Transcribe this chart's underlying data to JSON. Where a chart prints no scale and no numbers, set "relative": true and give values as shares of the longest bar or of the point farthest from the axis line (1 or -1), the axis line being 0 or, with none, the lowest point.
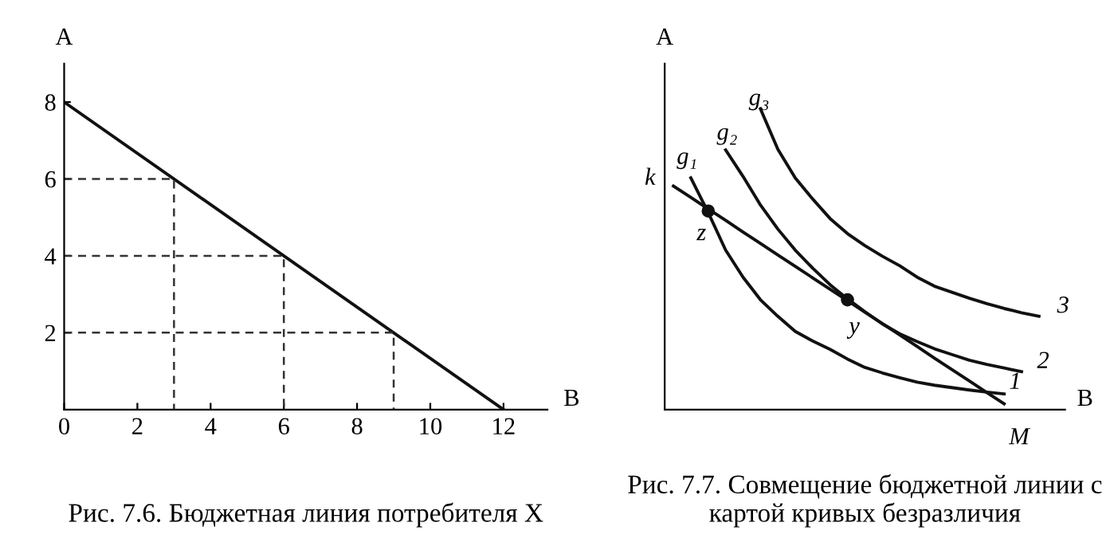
{
  "chart_data": [
    {
      "type": "line",
      "title": "Рис. 7.6. Бюджетная линия потребителя X",
      "xlabel": "В",
      "ylabel": "А",
      "xlim": [
        0,
        13.2
      ],
      "ylim": [
        0,
        9
      ],
      "xticks": [
        0,
        2,
        4,
        6,
        8,
        10,
        12
      ],
      "yticks": [
        2,
        4,
        6,
        8
      ],
      "series": [
        {
          "color": "#111111",
          "x": [
            0,
            12
          ],
          "values": [
            8,
            0
          ],
          "line_style": "solid"
        },
        {
          "color": "#333333",
          "x": [
            0,
            3,
            3
          ],
          "values": [
            6,
            6,
            0
          ],
          "line_style": "dashed"
        },
        {
          "color": "#333333",
          "x": [
            0,
            6,
            6
          ],
          "values": [
            4,
            4,
            0
          ],
          "line_style": "dashed"
        },
        {
          "color": "#333333",
          "x": [
            0,
            9,
            9
          ],
          "values": [
            2,
            2,
            0
          ],
          "line_style": "dashed"
        }
      ]
    },
    {
      "type": "line",
      "relative": true,
      "title": "Рис. 7.7. Совмещение бюджетной линии с картой кривых безразличия",
      "xlabel": "В",
      "ylabel": "А",
      "tick_labels": false,
      "categories": [
        null,
        null,
        null,
        null,
        null,
        null,
        null,
        null,
        null,
        null,
        null,
        null,
        null,
        null,
        null,
        null,
        null,
        null,
        null,
        null,
        null,
        null,
        null
      ],
      "series": [
        {
          "color": "#111111",
          "values": [
            0.743,
            0.705,
            0.667,
            0.629,
            0.59,
            0.552,
            0.514,
            0.476,
            0.438,
            0.4,
            0.362,
            0.324,
            0.286,
            0.248,
            0.21,
            0.171,
            0.133,
            0.095,
            0.057,
            0.019,
            null,
            null,
            null
          ]
        },
        {
          "color": "#111111",
          "values": [
            null,
            0.77,
            0.655,
            0.53,
            0.44,
            0.365,
            0.31,
            0.26,
            0.228,
            0.2,
            0.168,
            0.14,
            0.122,
            0.106,
            0.091,
            0.081,
            0.073,
            0.065,
            0.058,
            0.052,
            null,
            null,
            null
          ]
        },
        {
          "color": "#111111",
          "values": [
            null,
            null,
            null,
            0.863,
            0.775,
            0.68,
            0.6,
            0.53,
            0.47,
            0.415,
            0.368,
            0.325,
            0.285,
            0.252,
            0.226,
            0.202,
            0.183,
            0.164,
            0.15,
            0.138,
            0.126,
            null,
            null
          ]
        },
        {
          "color": "#111111",
          "values": [
            null,
            null,
            null,
            null,
            null,
            1,
            0.865,
            0.77,
            0.7,
            0.635,
            0.585,
            0.545,
            0.51,
            0.478,
            0.44,
            0.41,
            0.39,
            0.37,
            0.352,
            0.336,
            0.322,
            0.31,
            null
          ]
        },
        {
          "color": "#111111",
          "marker": "circle",
          "values": [
            null,
            null,
            0.66,
            null,
            null,
            null,
            null,
            null,
            null,
            null,
            null,
            null,
            null,
            null,
            null,
            null,
            null,
            null,
            null,
            null,
            null,
            null,
            null
          ]
        },
        {
          "color": "#111111",
          "marker": "circle",
          "values": [
            null,
            null,
            null,
            null,
            null,
            null,
            null,
            null,
            null,
            null,
            0.365,
            null,
            null,
            null,
            null,
            null,
            null,
            null,
            null,
            null,
            null,
            null,
            null
          ]
        }
      ],
      "annotations": [
        "k",
        "z",
        "y",
        "M",
        "g₁",
        "g₂",
        "g₃",
        "1",
        "2",
        "3"
      ]
    }
  ]
}
